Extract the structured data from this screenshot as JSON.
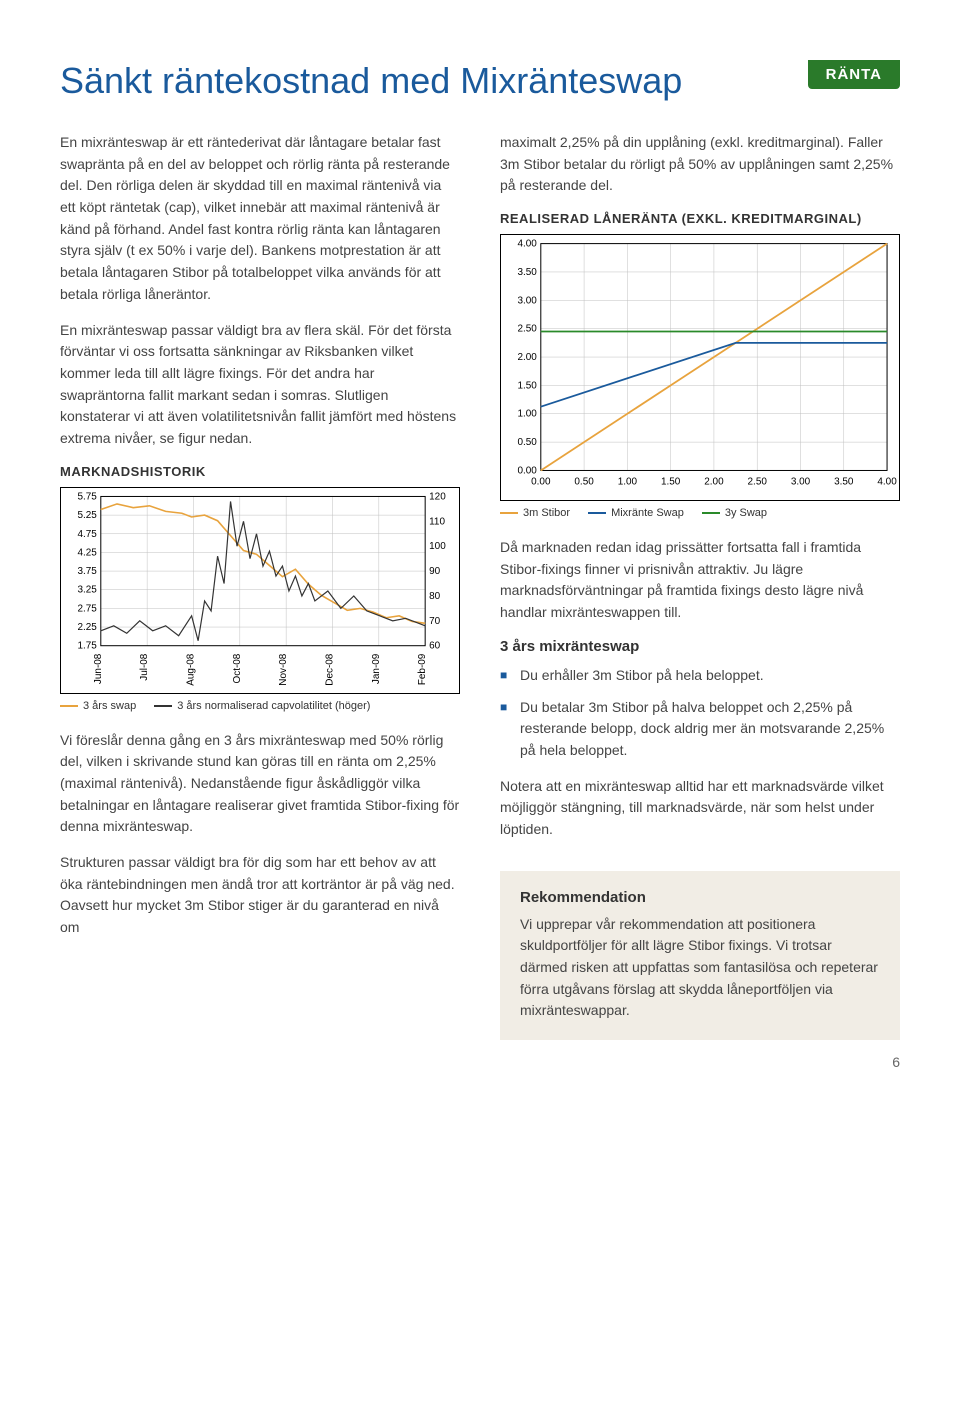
{
  "tag": "RÄNTA",
  "title": "Sänkt räntekostnad med Mixränteswap",
  "left": {
    "p1": "En mixränteswap är ett räntederivat där låntagare betalar fast swapränta på en del av beloppet och rörlig ränta på resterande del. Den rörliga delen är skyddad till en maximal räntenivå via ett köpt räntetak (cap), vilket innebär att maximal räntenivå är känd på förhand. Andel fast kontra rörlig ränta kan låntagaren styra själv (t ex 50% i varje del). Bankens motprestation är att betala låntagaren Stibor på totalbeloppet vilka används för att betala rörliga låneräntor.",
    "p2": "En mixränteswap passar väldigt bra av flera skäl. För det första förväntar vi oss fortsatta sänkningar av Riksbanken vilket kommer leda till allt lägre fixings. För det andra har swapräntorna fallit markant sedan i somras. Slutligen konstaterar vi att även volatilitetsnivån fallit jämfört med höstens extrema nivåer, se figur nedan.",
    "p3": "Vi föreslår denna gång en 3 års mixränteswap med 50% rörlig del, vilken i skrivande stund kan göras till en ränta om 2,25% (maximal räntenivå). Nedanstående figur åskådliggör vilka betalningar en låntagare realiserar givet framtida Stibor-fixing för denna mixränteswap.",
    "p4": "Strukturen passar väldigt bra för dig som har ett behov av att öka räntebindningen men ändå tror att korträntor är på väg ned. Oavsett hur mycket 3m Stibor stiger är du garanterad en nivå om"
  },
  "right": {
    "p1": "maximalt 2,25% på din upplåning (exkl. kreditmarginal). Faller 3m Stibor betalar du rörligt på 50% av upplåningen samt 2,25% på resterande del.",
    "p2": "Då marknaden redan idag prissätter fortsatta fall i framtida Stibor-fixings finner vi prisnivån attraktiv. Ju lägre marknadsförväntningar på framtida fixings desto lägre nivå handlar mixränteswappen till.",
    "sub": "3 års mixränteswap",
    "b1": "Du erhåller 3m Stibor på hela beloppet.",
    "b2": "Du betalar 3m Stibor på halva beloppet och 2,25% på resterande belopp, dock aldrig mer än motsvarande 2,25% på hela beloppet.",
    "p3": "Notera att en mixränteswap alltid har ett marknadsvärde vilket möjliggör stängning, till marknadsvärde, när som helst under löptiden."
  },
  "rec": {
    "title": "Rekommendation",
    "body": "Vi upprepar vår rekommendation att positionera skuldportföljer för allt lägre Stibor fixings. Vi trotsar därmed risken att uppfattas som fantasilösa och repeterar förra utgåvans förslag att skydda låneportföljen via mixränteswappar."
  },
  "chart1": {
    "title": "MARKNADSHISTORIK",
    "y1_ticks": [
      "5.75",
      "5.25",
      "4.75",
      "4.25",
      "3.75",
      "3.25",
      "2.75",
      "2.25",
      "1.75"
    ],
    "y1_min": 1.75,
    "y1_max": 5.75,
    "y2_ticks": [
      "120",
      "110",
      "100",
      "90",
      "80",
      "70",
      "60"
    ],
    "y2_min": 60,
    "y2_max": 120,
    "x_labels": [
      "Jun-08",
      "Jul-08",
      "Aug-08",
      "Oct-08",
      "Nov-08",
      "Dec-08",
      "Jan-09",
      "Feb-09"
    ],
    "legend": [
      {
        "label": "3 års swap",
        "color": "#e8a33d"
      },
      {
        "label": "3 års normaliserad capvolatilitet (höger)",
        "color": "#333333"
      }
    ],
    "colors": {
      "swap": "#e8a33d",
      "vol": "#333333",
      "grid": "#bfbfbf",
      "border": "#000000"
    },
    "swap_series": [
      [
        0,
        5.4
      ],
      [
        0.05,
        5.55
      ],
      [
        0.1,
        5.45
      ],
      [
        0.15,
        5.5
      ],
      [
        0.2,
        5.35
      ],
      [
        0.25,
        5.3
      ],
      [
        0.28,
        5.2
      ],
      [
        0.32,
        5.25
      ],
      [
        0.36,
        5.1
      ],
      [
        0.4,
        4.7
      ],
      [
        0.44,
        4.3
      ],
      [
        0.48,
        4.2
      ],
      [
        0.52,
        3.9
      ],
      [
        0.56,
        3.6
      ],
      [
        0.6,
        3.8
      ],
      [
        0.64,
        3.4
      ],
      [
        0.68,
        3.1
      ],
      [
        0.72,
        2.9
      ],
      [
        0.76,
        2.7
      ],
      [
        0.8,
        2.75
      ],
      [
        0.84,
        2.65
      ],
      [
        0.88,
        2.5
      ],
      [
        0.92,
        2.55
      ],
      [
        0.96,
        2.4
      ],
      [
        1.0,
        2.35
      ]
    ],
    "vol_series": [
      [
        0,
        66
      ],
      [
        0.04,
        68
      ],
      [
        0.08,
        65
      ],
      [
        0.12,
        70
      ],
      [
        0.16,
        66
      ],
      [
        0.2,
        68
      ],
      [
        0.24,
        64
      ],
      [
        0.28,
        72
      ],
      [
        0.3,
        62
      ],
      [
        0.32,
        78
      ],
      [
        0.34,
        74
      ],
      [
        0.36,
        96
      ],
      [
        0.38,
        85
      ],
      [
        0.4,
        118
      ],
      [
        0.42,
        100
      ],
      [
        0.44,
        110
      ],
      [
        0.46,
        95
      ],
      [
        0.48,
        105
      ],
      [
        0.5,
        92
      ],
      [
        0.52,
        98
      ],
      [
        0.54,
        88
      ],
      [
        0.56,
        92
      ],
      [
        0.58,
        82
      ],
      [
        0.6,
        88
      ],
      [
        0.62,
        80
      ],
      [
        0.64,
        85
      ],
      [
        0.66,
        78
      ],
      [
        0.7,
        82
      ],
      [
        0.74,
        75
      ],
      [
        0.78,
        80
      ],
      [
        0.82,
        74
      ],
      [
        0.86,
        72
      ],
      [
        0.9,
        70
      ],
      [
        0.94,
        71
      ],
      [
        1.0,
        68
      ]
    ]
  },
  "chart2": {
    "title": "REALISERAD LÅNERÄNTA (EXKL. KREDITMARGINAL)",
    "x_min": 0.0,
    "x_max": 4.0,
    "y_min": 0.0,
    "y_max": 4.0,
    "xticks": [
      "0.00",
      "0.50",
      "1.00",
      "1.50",
      "2.00",
      "2.50",
      "3.00",
      "3.50",
      "4.00"
    ],
    "yticks": [
      "0.00",
      "0.50",
      "1.00",
      "1.50",
      "2.00",
      "2.50",
      "3.00",
      "3.50",
      "4.00"
    ],
    "legend": [
      {
        "label": "3m Stibor",
        "color": "#e8a33d"
      },
      {
        "label": "Mixränte Swap",
        "color": "#1a5a9c"
      },
      {
        "label": "3y Swap",
        "color": "#2a8a2a"
      }
    ],
    "colors": {
      "stibor": "#e8a33d",
      "mix": "#1a5a9c",
      "swap3y": "#2a8a2a",
      "grid": "#bfbfbf",
      "border": "#000000"
    },
    "stibor_line": [
      [
        0,
        0
      ],
      [
        4,
        4
      ]
    ],
    "mix_line": [
      [
        0,
        1.125
      ],
      [
        2.25,
        2.25
      ],
      [
        4,
        2.25
      ]
    ],
    "swap3y_line": [
      [
        0,
        2.45
      ],
      [
        4,
        2.45
      ]
    ]
  },
  "page_number": "6"
}
